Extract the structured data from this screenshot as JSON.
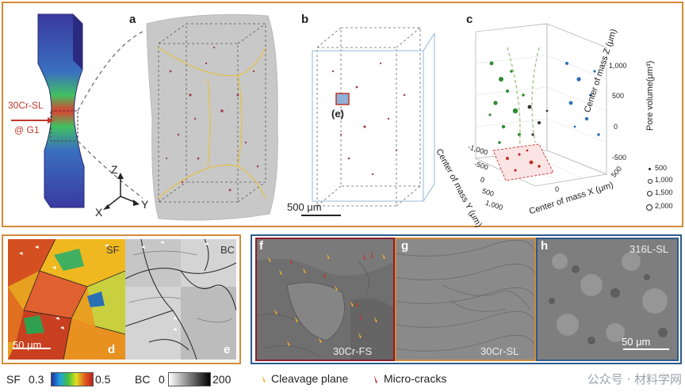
{
  "colors": {
    "top_frame": "#d48a3a",
    "red_frame": "#8b1e2d",
    "blue_frame": "#2d5a8c",
    "orange_frame": "#d48a3a"
  },
  "panel_a": {
    "label": "a",
    "specimen_label_line1": "30Cr-SL",
    "specimen_label_line2": "@ G1",
    "axis_z": "Z",
    "axis_x": "X",
    "axis_y": "Y"
  },
  "panel_b": {
    "label": "b",
    "inset_label": "(e)",
    "scalebar": "500 μm"
  },
  "panel_c": {
    "label": "c",
    "x_axis_label": "Center of mass X (μm)",
    "y_axis_label": "Center of mass Y (μm)",
    "z_axis_label": "Center of mass Z (μm)",
    "x_ticks": [
      "0",
      "500"
    ],
    "y_ticks": [
      "-1,000",
      "-500",
      "0",
      "500",
      "1,000"
    ],
    "z_ticks": [
      "1,000",
      "500",
      "0",
      "-500"
    ],
    "legend_title": "Pore volume(μm³)",
    "legend_items": [
      "500",
      "1,000",
      "1,500",
      "2,000"
    ]
  },
  "panel_d": {
    "label": "d",
    "tag": "SF",
    "scalebar": "50 μm"
  },
  "panel_e": {
    "label": "e",
    "tag": "BC"
  },
  "panel_f": {
    "label": "f",
    "tag": "30Cr-FS"
  },
  "panel_g": {
    "label": "g",
    "tag": "30Cr-SL"
  },
  "panel_h": {
    "label": "h",
    "tag": "316L-SL",
    "scalebar": "50 μm"
  },
  "colorbar_sf": {
    "label": "SF",
    "min": "0.3",
    "max": "0.5"
  },
  "colorbar_bc": {
    "label": "BC",
    "min": "0",
    "max": "200"
  },
  "legend": {
    "cleavage": "Cleavage plane",
    "microcracks": "Micro-cracks"
  },
  "watermark": "公众号 · 材料学网"
}
